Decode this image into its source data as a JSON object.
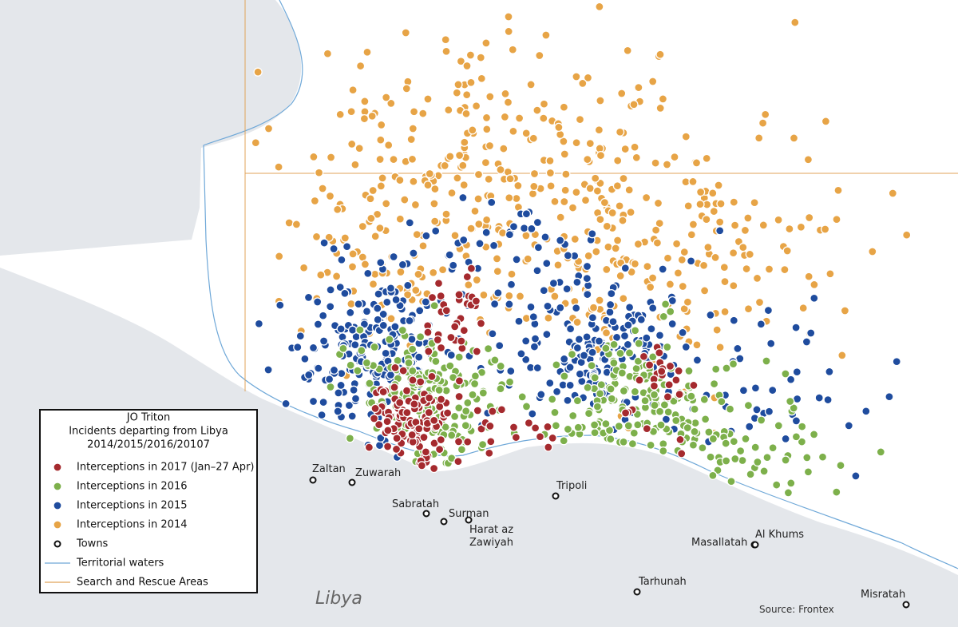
{
  "map": {
    "country_label": "Libya",
    "source": "Source: Frontex",
    "legend": {
      "title": [
        "JO Triton",
        "Incidents departing from Libya",
        "2014/2015/2016/20107"
      ],
      "items": [
        {
          "label": "Interceptions in 2017  (Jan–27 Apr)",
          "marker": "dot",
          "color": "#a52a2e"
        },
        {
          "label": "Interceptions in 2016",
          "marker": "dot",
          "color": "#7db04b"
        },
        {
          "label": "Interceptions in 2015",
          "marker": "dot",
          "color": "#1f4c9e"
        },
        {
          "label": "Interceptions in 2014",
          "marker": "dot",
          "color": "#e7a446"
        },
        {
          "label": "Towns",
          "marker": "town",
          "color": "#111111"
        },
        {
          "label": "Territorial waters",
          "marker": "line",
          "color": "#6fa8d8"
        },
        {
          "label": "Search and Rescue Areas",
          "marker": "line",
          "color": "#e0a35a"
        }
      ]
    },
    "towns": [
      "Zaltan",
      "Zuwarah",
      "Sabratah",
      "Surman",
      "Harat az Zawiyah",
      "Tripoli",
      "Masallatah",
      "Al Khums",
      "Tarhunah",
      "Misratah"
    ]
  }
}
